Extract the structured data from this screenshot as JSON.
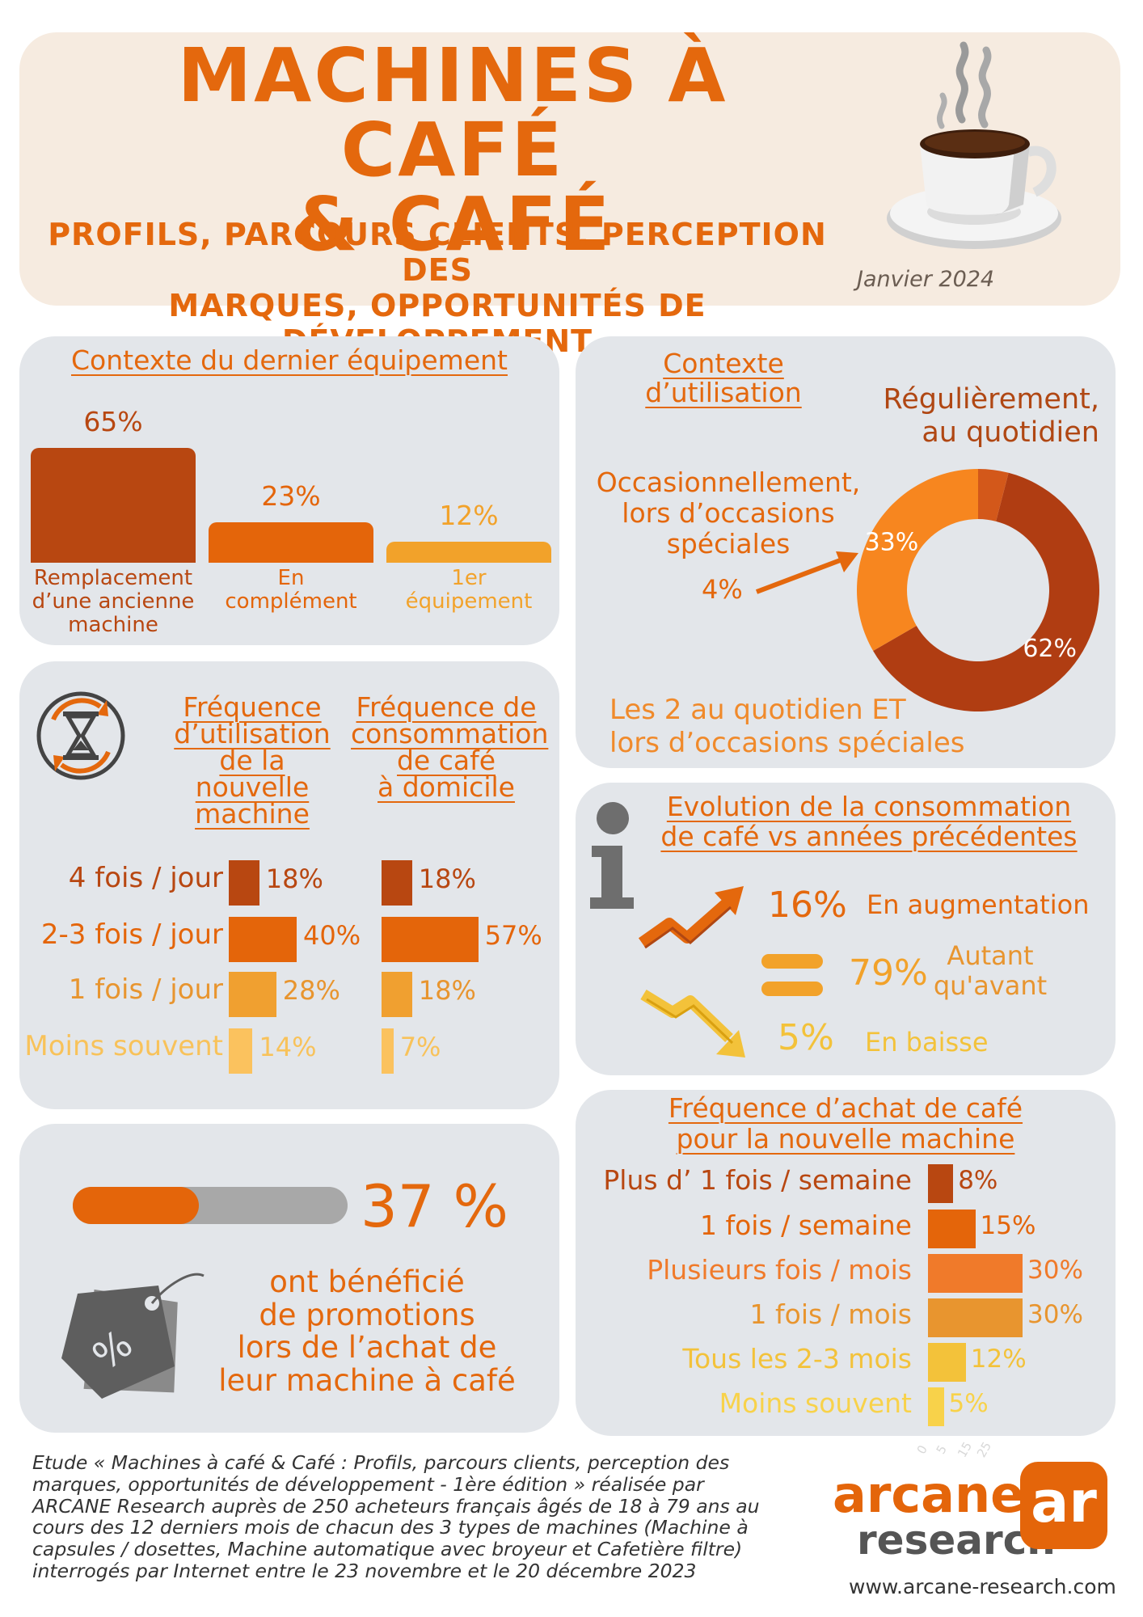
{
  "header": {
    "title_line1": "MACHINES À CAFÉ",
    "title_line2": "& CAFÉ",
    "subtitle_line1": "PROFILS, PARCOURS CLIENTS, PERCEPTION DES",
    "subtitle_line2": "MARQUES, OPPORTUNITÉS DE DÉVELOPPEMENT",
    "date": "Janvier 2024"
  },
  "colors": {
    "accent": "#e4680d",
    "dark": "#b04713",
    "panel": "#e3e6ea",
    "header_bg": "#f6ebe0",
    "level1": "#b84711",
    "level2": "#e4650a",
    "level3": "#f08a2b",
    "level4": "#e8952f",
    "level5": "#f3c23a",
    "level6": "#f8d24a"
  },
  "chart_data": [
    {
      "type": "bar",
      "title": "Contexte du dernier équipement",
      "categories": [
        "Remplacement d’une ancienne machine",
        "En complément",
        "1er équipement"
      ],
      "values": [
        65,
        23,
        12
      ],
      "value_labels": [
        "65%",
        "23%",
        "12%"
      ],
      "category_lines": [
        [
          "Remplacement",
          "d’une ancienne",
          "machine"
        ],
        [
          "En",
          "complément"
        ],
        [
          "1er",
          "équipement"
        ]
      ]
    },
    {
      "type": "pie",
      "title_lines": [
        "Contexte",
        "d’utilisation"
      ],
      "labels": [
        "Régulièrement, au quotidien",
        "Les 2 au quotidien ET lors d’occasions spéciales",
        "Occasionnellement, lors d’occasions spéciales"
      ],
      "values": [
        62,
        33,
        4
      ],
      "value_labels": [
        "62%",
        "33%",
        "4%"
      ],
      "label_lines": {
        "daily": [
          "Régulièrement,",
          "au quotidien"
        ],
        "occasional": [
          "Occasionnellement,",
          "lors d’occasions",
          "spéciales"
        ],
        "both": [
          "Les 2 au quotidien ET",
          "lors d’occasions spéciales"
        ]
      }
    },
    {
      "type": "bar",
      "orientation": "horizontal",
      "title_lines": [
        "Fréquence",
        "d’utilisation",
        "de la nouvelle",
        "machine"
      ],
      "categories": [
        "4 fois / jour",
        "2-3 fois / jour",
        "1 fois / jour",
        "Moins souvent"
      ],
      "values": [
        18,
        40,
        28,
        14
      ],
      "value_labels": [
        "18%",
        "40%",
        "28%",
        "14%"
      ]
    },
    {
      "type": "bar",
      "orientation": "horizontal",
      "title_lines": [
        "Fréquence de",
        "consommation",
        "de café",
        "à domicile"
      ],
      "categories": [
        "4 fois / jour",
        "2-3 fois / jour",
        "1 fois / jour",
        "Moins souvent"
      ],
      "values": [
        18,
        57,
        18,
        7
      ],
      "value_labels": [
        "18%",
        "57%",
        "18%",
        "7%"
      ]
    },
    {
      "type": "table",
      "title_lines": [
        "Evolution de la consommation",
        "de café vs années précédentes"
      ],
      "rows": [
        {
          "value": 16,
          "value_label": "16%",
          "label_lines": [
            "En augmentation"
          ]
        },
        {
          "value": 79,
          "value_label": "79%",
          "label_lines": [
            "Autant",
            "qu'avant"
          ]
        },
        {
          "value": 5,
          "value_label": "5%",
          "label_lines": [
            "En baisse"
          ]
        }
      ]
    },
    {
      "type": "bar",
      "title": "Promotions",
      "value": 37,
      "value_label": "37 %",
      "text_lines": [
        "ont bénéficié",
        "de promotions",
        "lors de l’achat de",
        "leur machine à café"
      ]
    },
    {
      "type": "bar",
      "orientation": "horizontal",
      "title_lines": [
        "Fréquence d’achat de café",
        "pour la nouvelle machine"
      ],
      "categories": [
        "Plus d’ 1 fois / semaine",
        "1 fois / semaine",
        "Plusieurs fois / mois",
        "1 fois / mois",
        "Tous les 2-3 mois",
        "Moins souvent"
      ],
      "values": [
        8,
        15,
        30,
        30,
        12,
        5
      ],
      "value_labels": [
        "8%",
        "15%",
        "30%",
        "30%",
        "12%",
        "5%"
      ],
      "axis_ticks": [
        "0",
        "5",
        "15",
        "25"
      ]
    }
  ],
  "footer": {
    "note_lines": [
      "Etude « Machines à café & Café : Profils, parcours clients, perception des",
      "marques, opportunités de développement - 1ère édition » réalisée par",
      "ARCANE Research auprès de 250 acheteurs français âgés de 18 à 79 ans au",
      "cours des 12 derniers mois de chacun des 3 types de machines (Machine à",
      "capsules / dosettes, Machine automatique avec broyeur et Cafetière filtre)",
      "interrogés par Internet entre le 23 novembre et le 20 décembre 2023"
    ],
    "brand_line1": "arcane",
    "brand_line2": "research",
    "brand_mark": "ar",
    "website": "www.arcane-research.com"
  }
}
